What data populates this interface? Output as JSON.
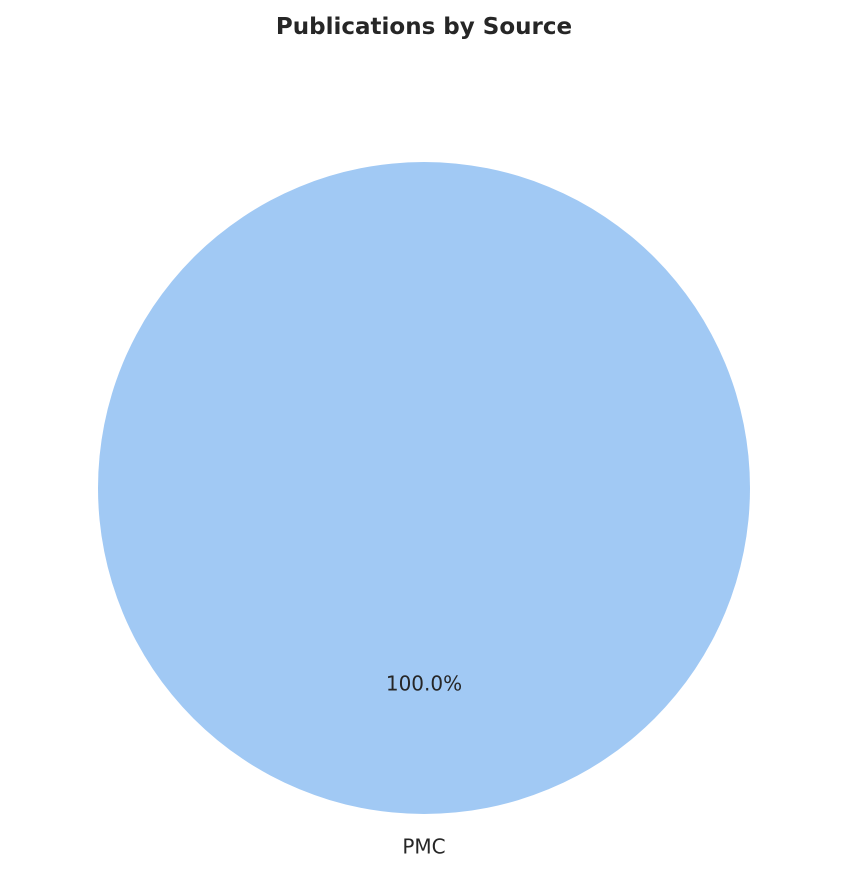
{
  "chart_data": {
    "type": "pie",
    "title": "Publications by Source",
    "slices": [
      {
        "label": "PMC",
        "value": 100.0,
        "pct_label": "100.0%",
        "color": "#a1c9f4"
      }
    ]
  }
}
